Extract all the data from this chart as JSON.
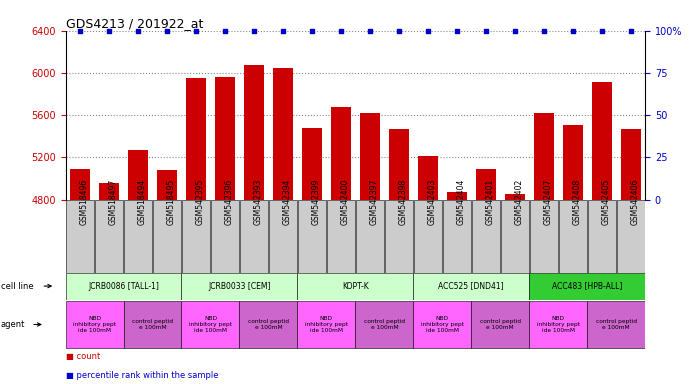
{
  "title": "GDS4213 / 201922_at",
  "samples": [
    "GSM518496",
    "GSM518497",
    "GSM518494",
    "GSM518495",
    "GSM542395",
    "GSM542396",
    "GSM542393",
    "GSM542394",
    "GSM542399",
    "GSM542400",
    "GSM542397",
    "GSM542398",
    "GSM542403",
    "GSM542404",
    "GSM542401",
    "GSM542402",
    "GSM542407",
    "GSM542408",
    "GSM542405",
    "GSM542406"
  ],
  "counts": [
    5090,
    4960,
    5270,
    5080,
    5950,
    5960,
    6080,
    6050,
    5480,
    5680,
    5620,
    5470,
    5210,
    4870,
    5090,
    4850,
    5620,
    5510,
    5910,
    5470
  ],
  "percentiles": [
    100,
    100,
    100,
    100,
    100,
    100,
    100,
    100,
    100,
    100,
    100,
    100,
    100,
    100,
    100,
    100,
    100,
    100,
    100,
    100
  ],
  "bar_color": "#cc0000",
  "dot_color": "#0000cc",
  "ylim_left": [
    4800,
    6400
  ],
  "ylim_right": [
    0,
    100
  ],
  "yticks_left": [
    4800,
    5200,
    5600,
    6000,
    6400
  ],
  "yticks_right": [
    0,
    25,
    50,
    75,
    100
  ],
  "sample_bg_color": "#cccccc",
  "cell_lines": [
    {
      "label": "JCRB0086 [TALL-1]",
      "start": 0,
      "end": 4,
      "color": "#ccffcc"
    },
    {
      "label": "JCRB0033 [CEM]",
      "start": 4,
      "end": 8,
      "color": "#ccffcc"
    },
    {
      "label": "KOPT-K",
      "start": 8,
      "end": 12,
      "color": "#ccffcc"
    },
    {
      "label": "ACC525 [DND41]",
      "start": 12,
      "end": 16,
      "color": "#ccffcc"
    },
    {
      "label": "ACC483 [HPB-ALL]",
      "start": 16,
      "end": 20,
      "color": "#33cc33"
    }
  ],
  "agents": [
    {
      "label": "NBD\ninhibitory pept\nide 100mM",
      "start": 0,
      "end": 2,
      "color": "#ff66ff"
    },
    {
      "label": "control peptid\ne 100mM",
      "start": 2,
      "end": 4,
      "color": "#cc66cc"
    },
    {
      "label": "NBD\ninhibitory pept\nide 100mM",
      "start": 4,
      "end": 6,
      "color": "#ff66ff"
    },
    {
      "label": "control peptid\ne 100mM",
      "start": 6,
      "end": 8,
      "color": "#cc66cc"
    },
    {
      "label": "NBD\ninhibitory pept\nide 100mM",
      "start": 8,
      "end": 10,
      "color": "#ff66ff"
    },
    {
      "label": "control peptid\ne 100mM",
      "start": 10,
      "end": 12,
      "color": "#cc66cc"
    },
    {
      "label": "NBD\ninhibitory pept\nide 100mM",
      "start": 12,
      "end": 14,
      "color": "#ff66ff"
    },
    {
      "label": "control peptid\ne 100mM",
      "start": 14,
      "end": 16,
      "color": "#cc66cc"
    },
    {
      "label": "NBD\ninhibitory pept\nide 100mM",
      "start": 16,
      "end": 18,
      "color": "#ff66ff"
    },
    {
      "label": "control peptid\ne 100mM",
      "start": 18,
      "end": 20,
      "color": "#cc66cc"
    }
  ],
  "bg_color": "#ffffff",
  "tick_label_color_left": "#cc0000",
  "tick_label_color_right": "#0000cc"
}
